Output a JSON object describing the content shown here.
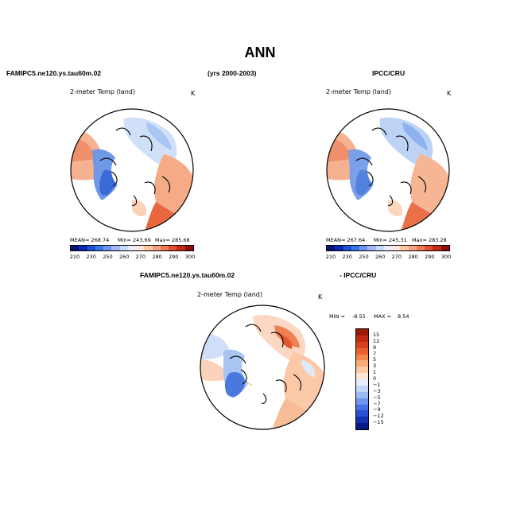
{
  "title": "ANN",
  "header": {
    "model": "FAMIPC5.ne120.ys.tau60m.02",
    "years": "(yrs 2000-2003)",
    "obs": "IPCC/CRU"
  },
  "panels": [
    {
      "title": "2-meter Temp (land)",
      "units": "K",
      "mean_label": "MEAN= 268.74",
      "min_label": "Min= 243.69",
      "max_label": "Max= 285.68"
    },
    {
      "title": "2-meter Temp (land)",
      "units": "K",
      "mean_label": "MEAN= 267.64",
      "min_label": "Min= 245.31",
      "max_label": "Max= 283.28"
    }
  ],
  "diff": {
    "label_left": "FAMIPC5.ne120.ys.tau60m.02",
    "label_right": "- IPCC/CRU",
    "title": "2-meter Temp (land)",
    "units": "K",
    "min_label": "MIN =",
    "min_value": "-8.55",
    "max_label": "MAX =",
    "max_value": "8.54"
  },
  "colorbar_main": {
    "ticks": [
      "210",
      "230",
      "250",
      "260",
      "270",
      "280",
      "290",
      "300"
    ],
    "colors": [
      "#08127a",
      "#0c2cb0",
      "#1e4fd8",
      "#3c73e8",
      "#6b95ef",
      "#9dbaf5",
      "#c9dbf8",
      "#e9f0fb",
      "#fde6d6",
      "#fbc7a6",
      "#f7a27c",
      "#f07a55",
      "#e24e33",
      "#c42a18",
      "#8e1208"
    ]
  },
  "colorbar_diff": {
    "ticks": [
      "15",
      "12",
      "9",
      "7",
      "5",
      "3",
      "1",
      "0",
      "−1",
      "−3",
      "−5",
      "−7",
      "−9",
      "−12",
      "−15"
    ],
    "colors": [
      "#9a1a08",
      "#bf2a12",
      "#d9401f",
      "#e9612f",
      "#f3864d",
      "#f8a97a",
      "#fbcaa8",
      "#fde6d6",
      "#e6eefb",
      "#c4d6f8",
      "#9cb9f3",
      "#6f96ee",
      "#4571e4",
      "#2a50d2",
      "#1532b0",
      "#081a82"
    ]
  }
}
